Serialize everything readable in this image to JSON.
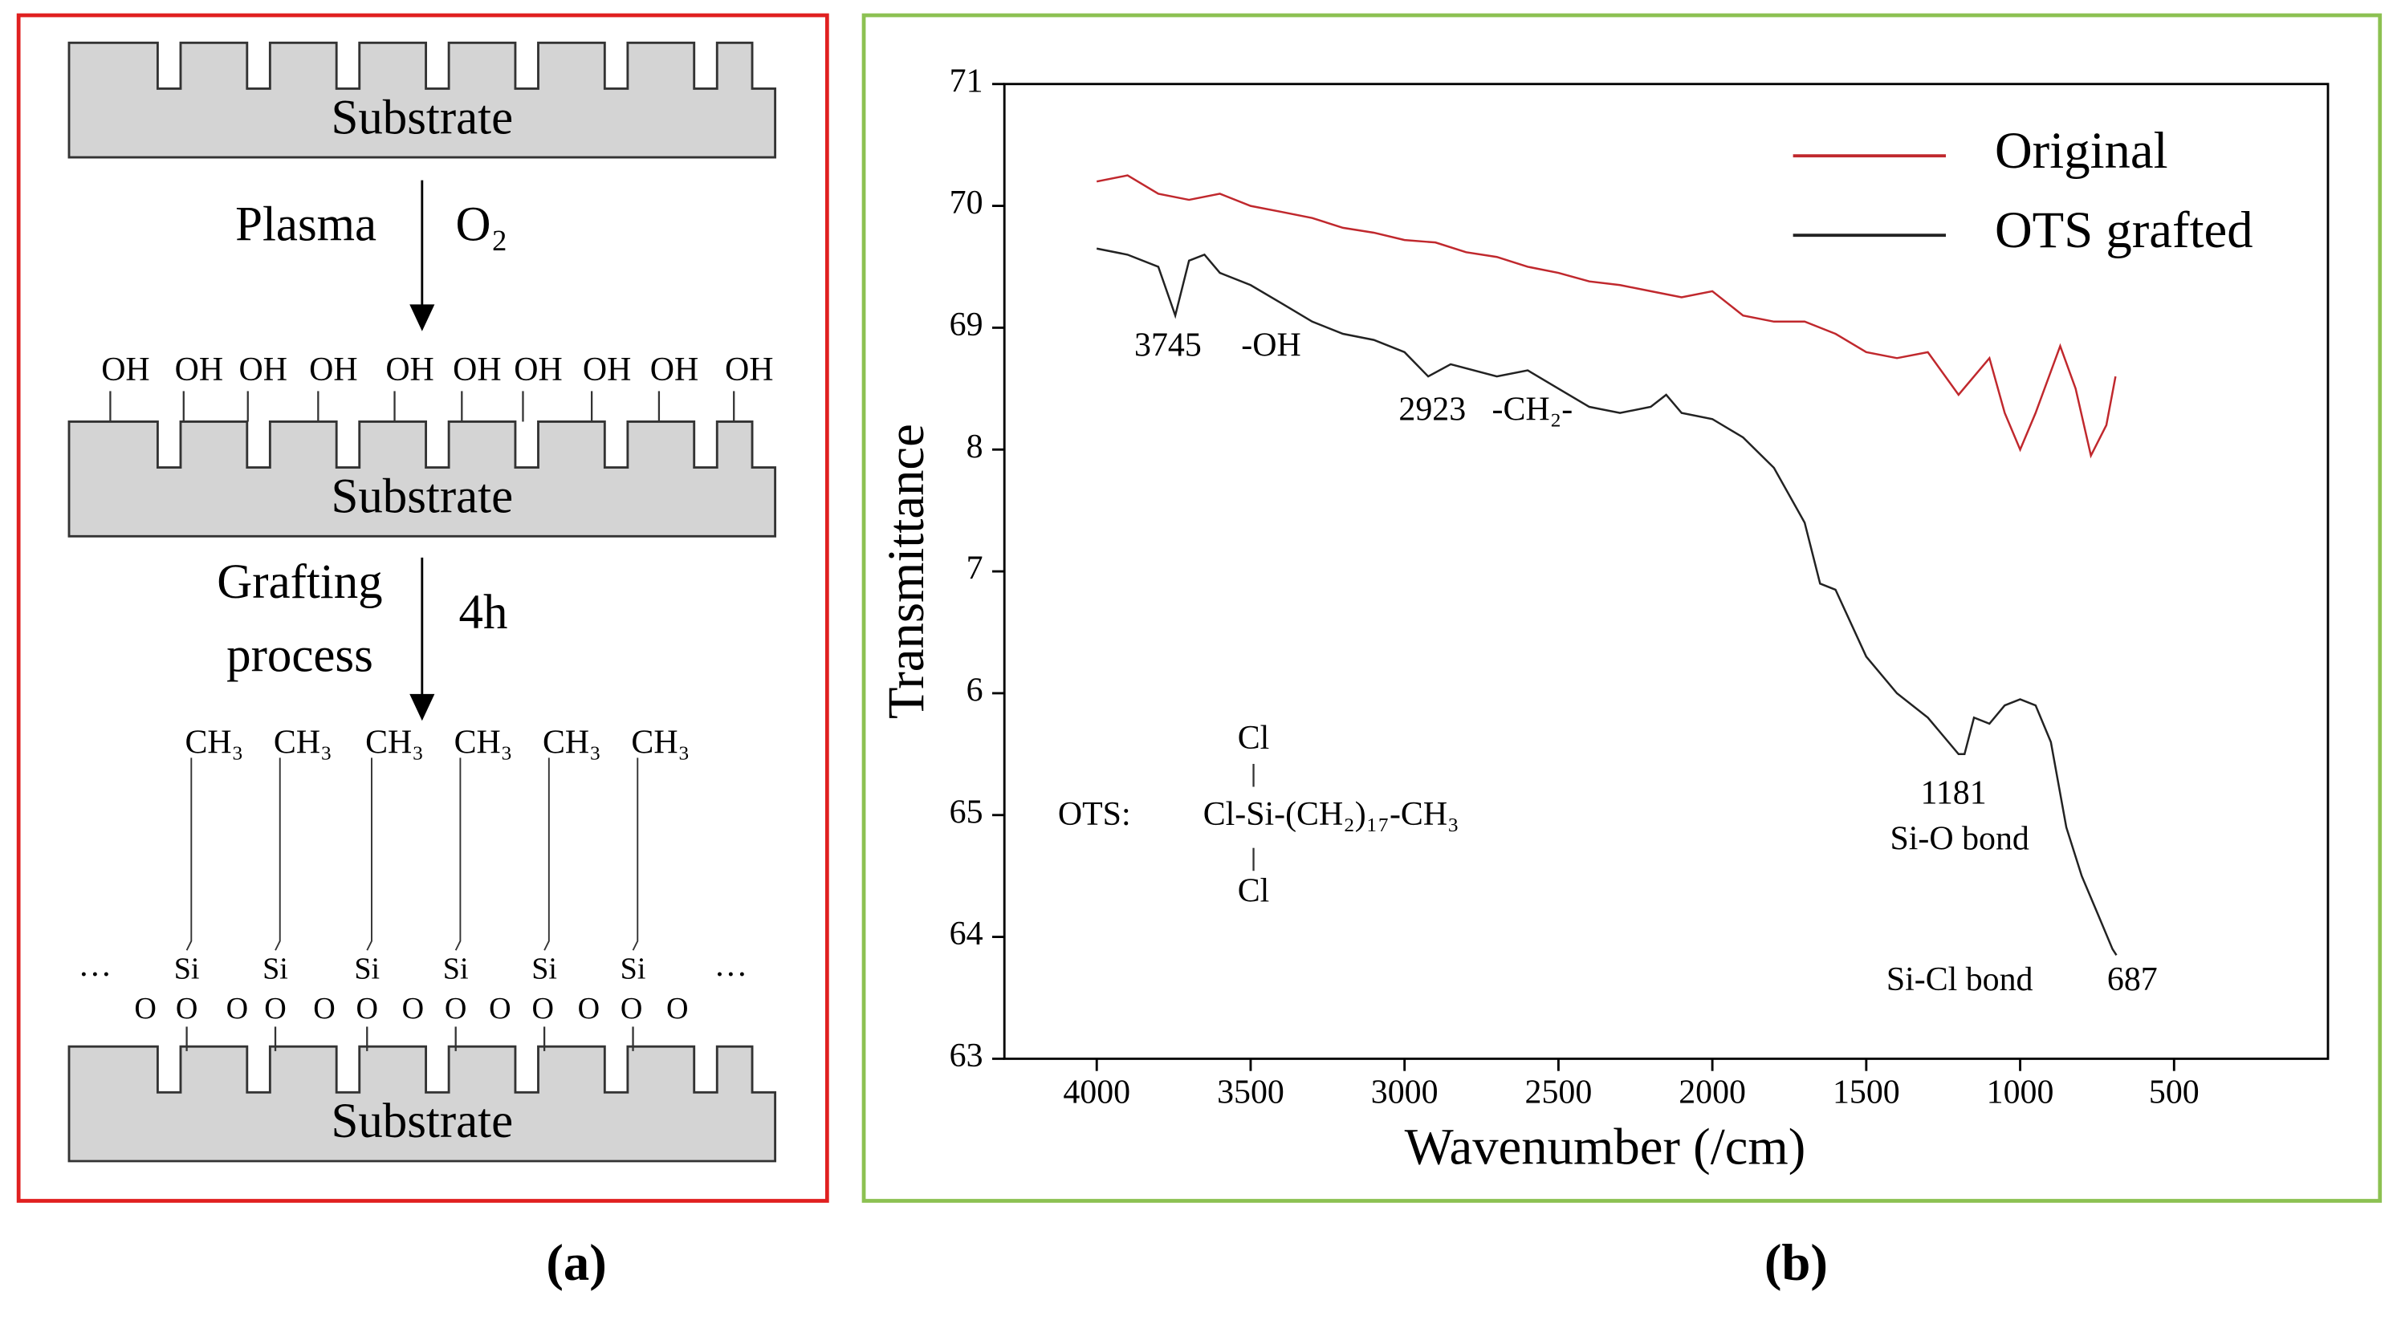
{
  "diagram": {
    "substrate_labels": [
      "Substrate",
      "Substrate",
      "Substrate"
    ],
    "step1": [
      "Plasma",
      "O₂"
    ],
    "oh_groups": [
      "OH",
      "OH",
      "OH",
      "OH",
      "OH",
      "OH",
      "OH",
      "OH",
      "OH",
      "OH"
    ],
    "step2": [
      "Grafting",
      "process",
      "4h"
    ],
    "methyl_groups": [
      "CH₃",
      "CH₃",
      "CH₃",
      "CH₃",
      "CH₃",
      "CH₃"
    ],
    "si_atoms": [
      "Si",
      "Si",
      "Si",
      "Si",
      "Si",
      "Si"
    ],
    "o_atoms": [
      "O",
      "O",
      "O",
      "O",
      "O",
      "O",
      "O",
      "O",
      "O",
      "O",
      "O",
      "O",
      "O"
    ],
    "ellipses": [
      "···",
      "···"
    ],
    "panel_label": "(a)"
  },
  "chart_data": {
    "type": "line",
    "panel_label": "(b)",
    "xlabel": "Wavenumber (/cm)",
    "ylabel": "Transmittance",
    "xlim": [
      4300,
      0
    ],
    "xticks": [
      4000,
      3500,
      3000,
      2500,
      2000,
      1500,
      1000,
      500
    ],
    "ylim": [
      63,
      71
    ],
    "yticks": [
      71,
      70,
      69,
      {
        "value": 68,
        "label": "8"
      },
      {
        "value": 67,
        "label": "7"
      },
      {
        "value": 66,
        "label": "6"
      },
      65,
      64,
      63
    ],
    "legend": "upper right",
    "series": [
      {
        "name": "Original",
        "color": "#c0282d",
        "x": [
          4000,
          3900,
          3800,
          3700,
          3600,
          3500,
          3400,
          3300,
          3200,
          3100,
          3000,
          2900,
          2800,
          2700,
          2600,
          2500,
          2400,
          2300,
          2200,
          2100,
          2000,
          1900,
          1800,
          1700,
          1600,
          1500,
          1400,
          1300,
          1200,
          1100,
          1050,
          1000,
          950,
          870,
          820,
          770,
          720,
          690
        ],
        "values": [
          70.2,
          70.25,
          70.1,
          70.05,
          70.1,
          70.0,
          69.95,
          69.9,
          69.82,
          69.78,
          69.72,
          69.7,
          69.62,
          69.58,
          69.5,
          69.45,
          69.38,
          69.35,
          69.3,
          69.25,
          69.3,
          69.1,
          69.05,
          69.05,
          68.95,
          68.8,
          68.75,
          68.8,
          68.45,
          68.75,
          68.3,
          68.0,
          68.3,
          68.85,
          68.5,
          67.95,
          68.2,
          68.6
        ]
      },
      {
        "name": "OTS grafted",
        "color": "#222222",
        "x": [
          4000,
          3900,
          3800,
          3745,
          3700,
          3650,
          3600,
          3500,
          3400,
          3300,
          3200,
          3100,
          3000,
          2923,
          2850,
          2700,
          2600,
          2500,
          2400,
          2300,
          2200,
          2150,
          2100,
          2000,
          1900,
          1800,
          1700,
          1650,
          1600,
          1500,
          1400,
          1300,
          1200,
          1181,
          1150,
          1100,
          1050,
          1000,
          950,
          900,
          850,
          800,
          750,
          700,
          687
        ],
        "values": [
          69.65,
          69.6,
          69.5,
          69.1,
          69.55,
          69.6,
          69.45,
          69.35,
          69.2,
          69.05,
          68.95,
          68.9,
          68.8,
          68.6,
          68.7,
          68.6,
          68.65,
          68.5,
          68.35,
          68.3,
          68.35,
          68.45,
          68.3,
          68.25,
          68.1,
          67.85,
          67.4,
          66.9,
          66.85,
          66.3,
          66.0,
          65.8,
          65.5,
          65.5,
          65.8,
          65.75,
          65.9,
          65.95,
          65.9,
          65.6,
          64.9,
          64.5,
          64.2,
          63.9,
          63.85
        ]
      }
    ],
    "annotations": [
      "3745",
      "-OH",
      "2923",
      "-CH₂-",
      "1181",
      "Si-O bond",
      "Si-Cl bond",
      "687",
      "OTS:",
      "Cl",
      "Cl-Si-(CH₂)₁₇-CH₃",
      "Cl"
    ]
  }
}
